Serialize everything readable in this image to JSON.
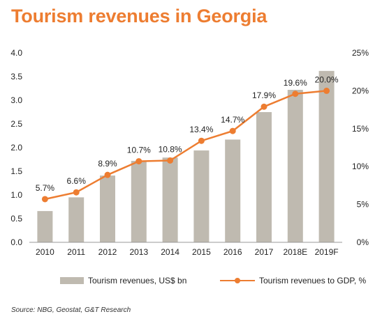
{
  "title": "Tourism revenues in Georgia",
  "source": "Source: NBG, Geostat, G&T Research",
  "colors": {
    "bar": "#BFBAB0",
    "line": "#ED7D31",
    "title": "#ED7D31"
  },
  "chart_data": {
    "type": "bar",
    "categories": [
      "2010",
      "2011",
      "2012",
      "2013",
      "2014",
      "2015",
      "2016",
      "2017",
      "2018E",
      "2019F"
    ],
    "series": [
      {
        "name": "Tourism revenues, US$ bn",
        "type": "bar",
        "axis": "left",
        "values": [
          0.66,
          0.95,
          1.41,
          1.72,
          1.79,
          1.94,
          2.17,
          2.75,
          3.22,
          3.62
        ]
      },
      {
        "name": "Tourism revenues to GDP, %",
        "type": "line",
        "axis": "right",
        "values": [
          5.7,
          6.6,
          8.9,
          10.7,
          10.8,
          13.4,
          14.7,
          17.9,
          19.6,
          20.0
        ],
        "labels": [
          "5.7%",
          "6.6%",
          "8.9%",
          "10.7%",
          "10.8%",
          "13.4%",
          "14.7%",
          "17.9%",
          "19.6%",
          "20.0%"
        ]
      }
    ],
    "y_left": {
      "lim": [
        0,
        4.0
      ],
      "ticks": [
        "0.0",
        "0.5",
        "1.0",
        "1.5",
        "2.0",
        "2.5",
        "3.0",
        "3.5",
        "4.0"
      ]
    },
    "y_right": {
      "lim": [
        0,
        25
      ],
      "ticks": [
        "0%",
        "5%",
        "10%",
        "15%",
        "20%",
        "25%"
      ]
    },
    "grid": false,
    "legend": "bottom"
  }
}
